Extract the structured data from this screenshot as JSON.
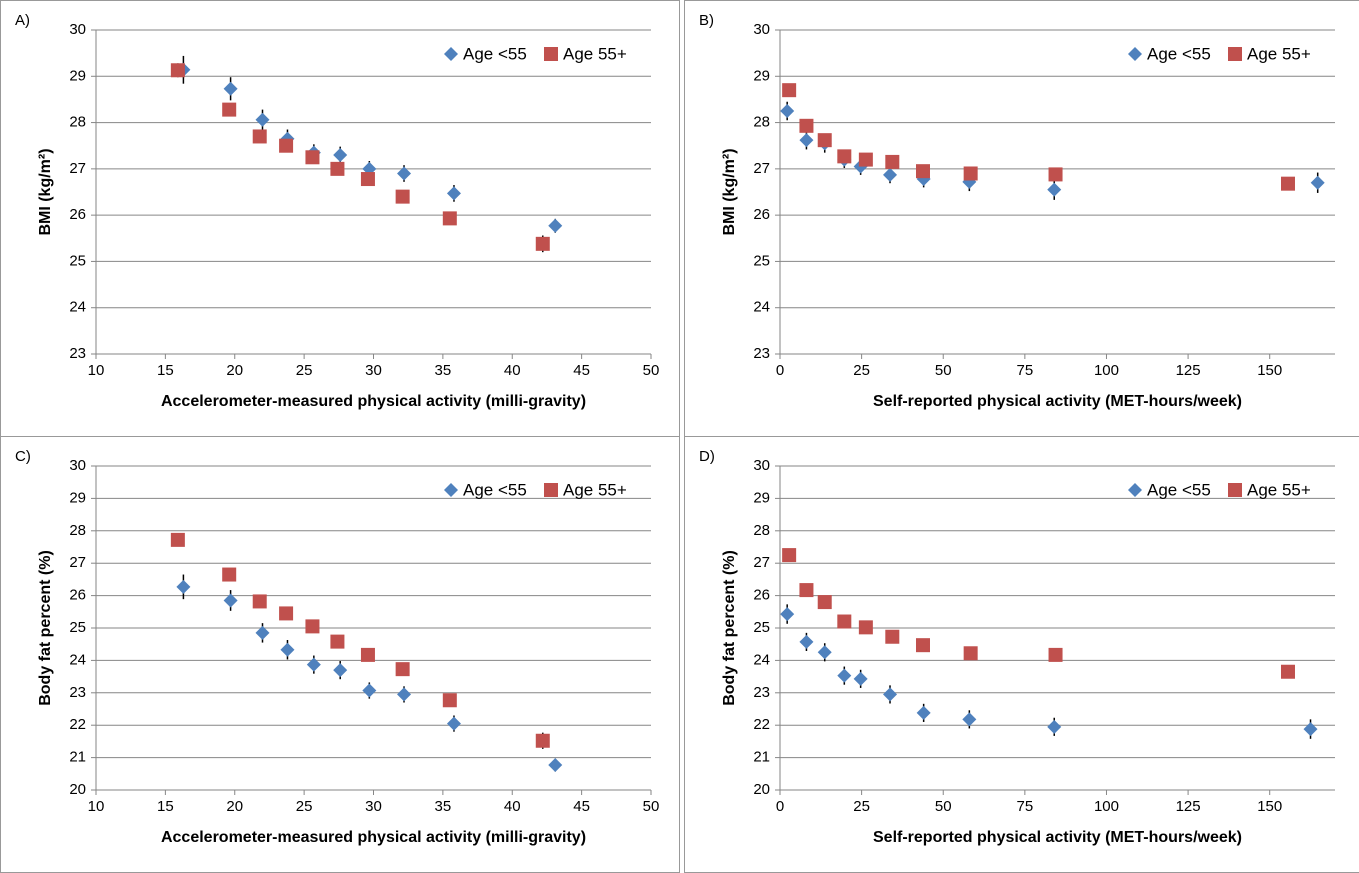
{
  "chart_data": [
    {
      "type": "scatter",
      "panel_label": "A)",
      "xlabel": "Accelerometer-measured physical activity (milli-gravity)",
      "ylabel": "BMI (kg/m²)",
      "xlim": [
        10,
        50
      ],
      "xticks": [
        10,
        15,
        20,
        25,
        30,
        35,
        40,
        45,
        50
      ],
      "ylim": [
        23,
        30
      ],
      "yticks": [
        23,
        24,
        25,
        26,
        27,
        28,
        29,
        30
      ],
      "grid": true,
      "legend": "upper right",
      "series": [
        {
          "name": "Age <55",
          "color": "#4f81bd",
          "marker": "diamond",
          "x": [
            16.3,
            19.7,
            22.0,
            23.8,
            25.7,
            27.6,
            29.7,
            32.2,
            35.8,
            43.1
          ],
          "values": [
            29.14,
            28.73,
            28.06,
            27.65,
            27.35,
            27.3,
            27.0,
            26.9,
            26.47,
            25.77
          ],
          "errors": [
            0.3,
            0.25,
            0.22,
            0.2,
            0.18,
            0.18,
            0.17,
            0.18,
            0.18,
            0.15
          ]
        },
        {
          "name": "Age 55+",
          "color": "#c0504d",
          "marker": "square",
          "x": [
            15.9,
            19.6,
            21.8,
            23.7,
            25.6,
            27.4,
            29.6,
            32.1,
            35.5,
            42.2
          ],
          "values": [
            29.13,
            28.28,
            27.7,
            27.5,
            27.25,
            27.0,
            26.78,
            26.4,
            25.93,
            25.38
          ],
          "errors": [
            0.15,
            0.12,
            0.12,
            0.12,
            0.12,
            0.12,
            0.12,
            0.12,
            0.12,
            0.18
          ]
        }
      ]
    },
    {
      "type": "scatter",
      "panel_label": "B)",
      "xlabel": "Self-reported physical activity (MET-hours/week)",
      "ylabel": "BMI (kg/m²)",
      "xlim": [
        0,
        170
      ],
      "xticks": [
        0,
        25,
        50,
        75,
        100,
        125,
        150
      ],
      "ylim": [
        23,
        30
      ],
      "yticks": [
        23,
        24,
        25,
        26,
        27,
        28,
        29,
        30
      ],
      "grid": true,
      "legend": "upper right",
      "series": [
        {
          "name": "Age <55",
          "color": "#4f81bd",
          "marker": "diamond",
          "x": [
            2.2,
            8.1,
            13.7,
            19.7,
            24.7,
            33.7,
            44.0,
            58.0,
            84.0,
            164.7
          ],
          "values": [
            28.25,
            27.62,
            27.55,
            27.2,
            27.05,
            26.87,
            26.78,
            26.72,
            26.55,
            26.7
          ],
          "errors": [
            0.2,
            0.2,
            0.2,
            0.18,
            0.18,
            0.18,
            0.18,
            0.2,
            0.22,
            0.22
          ]
        },
        {
          "name": "Age 55+",
          "color": "#c0504d",
          "marker": "square",
          "x": [
            2.8,
            8.1,
            13.7,
            19.7,
            26.3,
            34.4,
            43.8,
            58.4,
            84.4,
            155.6
          ],
          "values": [
            28.7,
            27.93,
            27.62,
            27.27,
            27.2,
            27.15,
            26.95,
            26.9,
            26.88,
            26.68
          ],
          "errors": [
            0.12,
            0.1,
            0.1,
            0.1,
            0.1,
            0.1,
            0.1,
            0.1,
            0.1,
            0.1
          ]
        }
      ]
    },
    {
      "type": "scatter",
      "panel_label": "C)",
      "xlabel": "Accelerometer-measured physical activity (milli-gravity)",
      "ylabel": "Body fat percent (%)",
      "xlim": [
        10,
        50
      ],
      "xticks": [
        10,
        15,
        20,
        25,
        30,
        35,
        40,
        45,
        50
      ],
      "ylim": [
        20,
        30
      ],
      "yticks": [
        20,
        21,
        22,
        23,
        24,
        25,
        26,
        27,
        28,
        29,
        30
      ],
      "grid": true,
      "legend": "upper right",
      "series": [
        {
          "name": "Age <55",
          "color": "#4f81bd",
          "marker": "diamond",
          "x": [
            16.3,
            19.7,
            22.0,
            23.8,
            25.7,
            27.6,
            29.7,
            32.2,
            35.8,
            43.1
          ],
          "values": [
            26.27,
            25.85,
            24.85,
            24.33,
            23.87,
            23.7,
            23.07,
            22.95,
            22.05,
            20.77
          ],
          "errors": [
            0.38,
            0.32,
            0.3,
            0.3,
            0.28,
            0.28,
            0.25,
            0.25,
            0.25,
            0.2
          ]
        },
        {
          "name": "Age 55+",
          "color": "#c0504d",
          "marker": "square",
          "x": [
            15.9,
            19.6,
            21.8,
            23.7,
            25.6,
            27.4,
            29.6,
            32.1,
            35.5,
            42.2
          ],
          "values": [
            27.72,
            26.65,
            25.82,
            25.45,
            25.05,
            24.58,
            24.17,
            23.73,
            22.77,
            21.52
          ],
          "errors": [
            0.15,
            0.15,
            0.15,
            0.15,
            0.15,
            0.15,
            0.15,
            0.15,
            0.15,
            0.25
          ]
        }
      ]
    },
    {
      "type": "scatter",
      "panel_label": "D)",
      "xlabel": "Self-reported physical activity (MET-hours/week)",
      "ylabel": "Body fat percent (%)",
      "xlim": [
        0,
        170
      ],
      "xticks": [
        0,
        25,
        50,
        75,
        100,
        125,
        150
      ],
      "ylim": [
        20,
        30
      ],
      "yticks": [
        20,
        21,
        22,
        23,
        24,
        25,
        26,
        27,
        28,
        29,
        30
      ],
      "grid": true,
      "legend": "upper right",
      "series": [
        {
          "name": "Age <55",
          "color": "#4f81bd",
          "marker": "diamond",
          "x": [
            2.2,
            8.1,
            13.7,
            19.7,
            24.7,
            33.7,
            44.0,
            58.0,
            84.0,
            162.5
          ],
          "values": [
            25.43,
            24.57,
            24.25,
            23.53,
            23.43,
            22.95,
            22.38,
            22.18,
            21.95,
            21.88
          ],
          "errors": [
            0.3,
            0.28,
            0.28,
            0.28,
            0.28,
            0.28,
            0.28,
            0.28,
            0.28,
            0.3
          ]
        },
        {
          "name": "Age 55+",
          "color": "#c0504d",
          "marker": "square",
          "x": [
            2.8,
            8.1,
            13.7,
            19.7,
            26.3,
            34.4,
            43.8,
            58.4,
            84.4,
            155.6
          ],
          "values": [
            27.25,
            26.17,
            25.8,
            25.2,
            25.02,
            24.73,
            24.47,
            24.22,
            24.17,
            23.65
          ],
          "errors": [
            0.15,
            0.15,
            0.15,
            0.15,
            0.15,
            0.15,
            0.15,
            0.15,
            0.15,
            0.15
          ]
        }
      ]
    }
  ]
}
